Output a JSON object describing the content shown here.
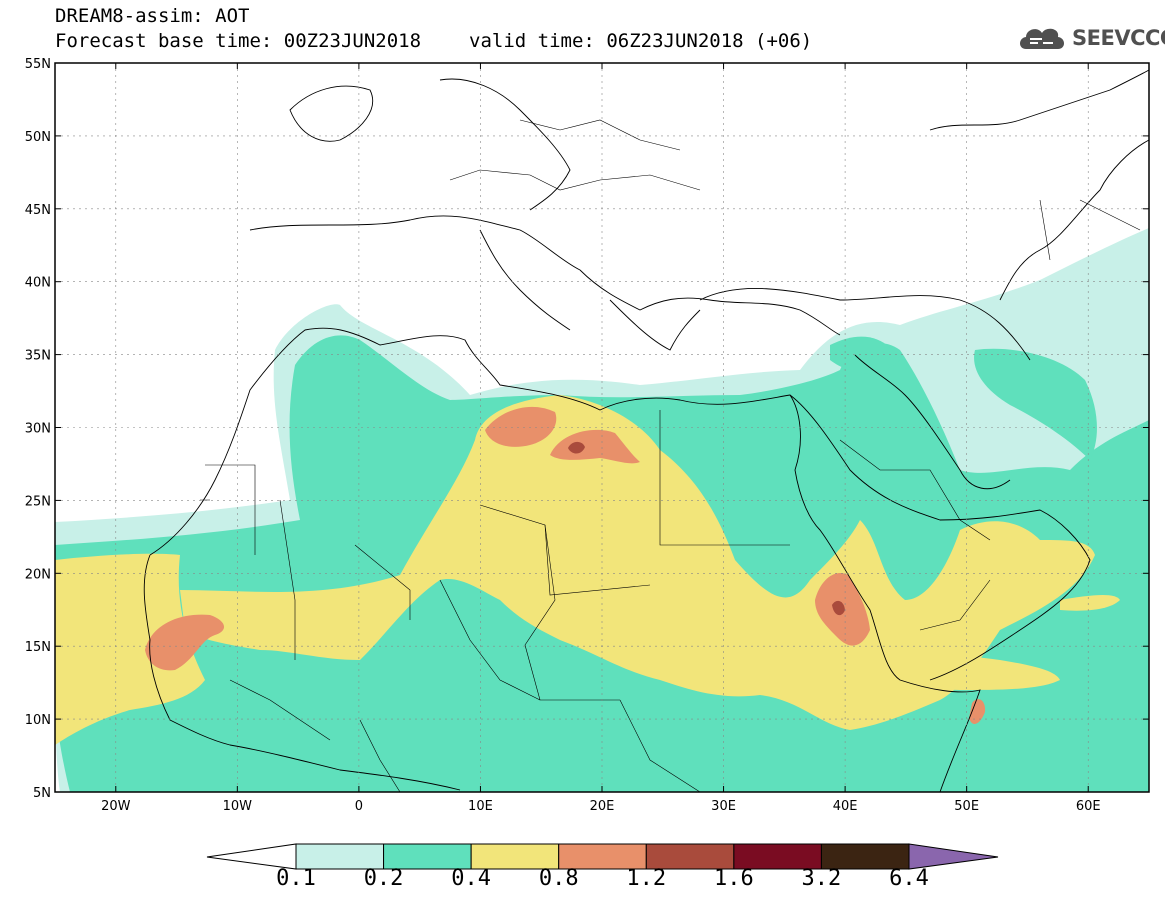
{
  "header": {
    "title": "DREAM8-assim: AOT",
    "base_time": "Forecast base time: 00Z23JUN2018",
    "valid_time": "valid time: 06Z23JUN2018 (+06)"
  },
  "logo": {
    "text": "SEEVCCC",
    "icon": "cloud-icon"
  },
  "map": {
    "lat_labels": [
      "55N",
      "50N",
      "45N",
      "40N",
      "35N",
      "30N",
      "25N",
      "20N",
      "15N",
      "10N",
      "5N"
    ],
    "lon_labels": [
      "20W",
      "10W",
      "0",
      "10E",
      "20E",
      "30E",
      "40E",
      "50E",
      "60E"
    ],
    "lon_range": [
      -25,
      65
    ],
    "lat_range": [
      5,
      55
    ]
  },
  "colorbar": {
    "labels": [
      "0.1",
      "0.2",
      "0.4",
      "0.8",
      "1.2",
      "1.6",
      "3.2",
      "6.4"
    ],
    "colors": [
      "#c8f0e8",
      "#5fe0bc",
      "#f2e57a",
      "#e8906a",
      "#a94b3c",
      "#7a0c22",
      "#3b2412",
      "#8a66ad"
    ]
  }
}
